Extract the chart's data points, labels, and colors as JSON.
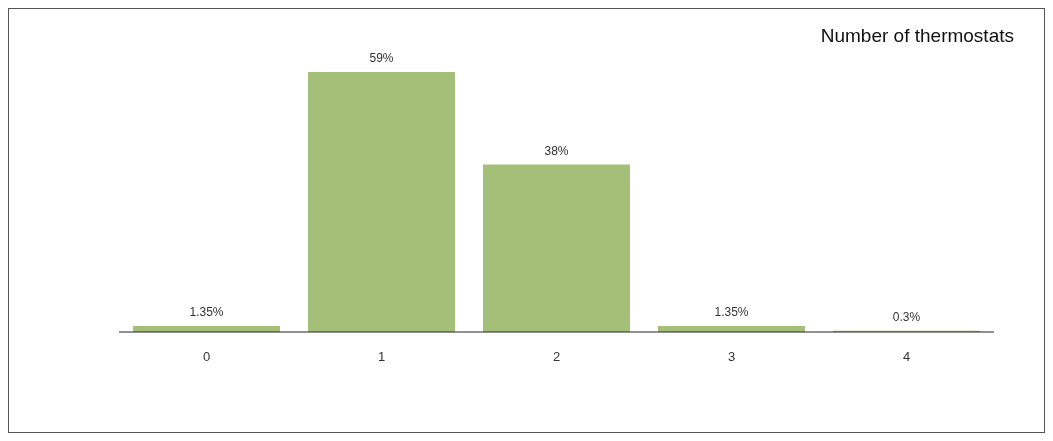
{
  "chart_data": {
    "type": "bar",
    "title": "Number of thermostats",
    "categories": [
      "0",
      "1",
      "2",
      "3",
      "4"
    ],
    "values": [
      1.35,
      59,
      38,
      1.35,
      0.3
    ],
    "value_labels": [
      "1.35%",
      "59%",
      "38%",
      "1.35%",
      "0.3%"
    ],
    "color": "#a3bf78",
    "grid": false,
    "legend": false
  }
}
